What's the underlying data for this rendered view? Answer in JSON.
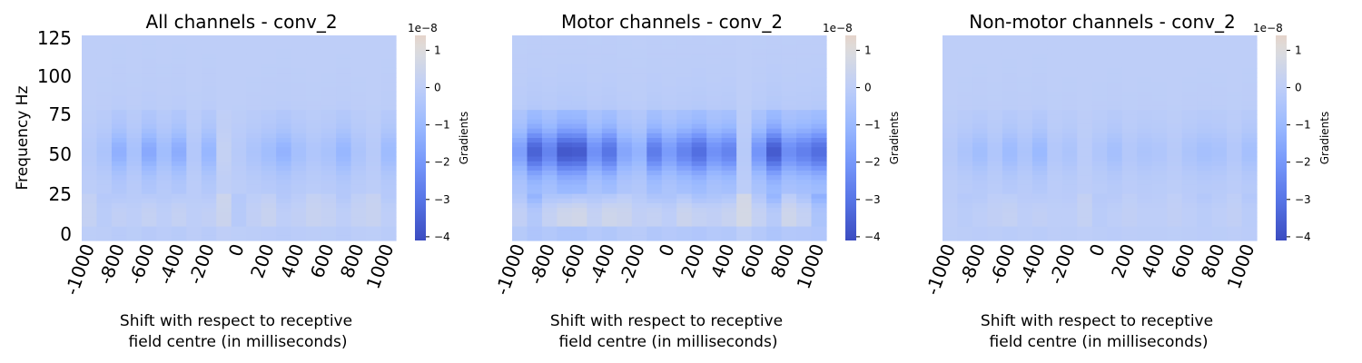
{
  "chart_data": [
    {
      "type": "heatmap",
      "title": "All channels - conv_2",
      "xlabel_line1": "Shift with respect to receptive",
      "xlabel_line2": "field centre (in milliseconds)",
      "ylabel": "Frequency Hz",
      "x_ticks": [
        "-1000",
        "-800",
        "-600",
        "-400",
        "-200",
        "0",
        "200",
        "400",
        "600",
        "800",
        "1000"
      ],
      "y_ticks": [
        "125",
        "100",
        "75",
        "50",
        "25",
        "0"
      ],
      "colorbar": {
        "label": "Gradients",
        "exponent": "1e−8",
        "ticks": [
          "1",
          "0",
          "−1",
          "−2",
          "−3",
          "−4"
        ],
        "vmin": -4.1,
        "vmax": 1.4
      },
      "colormap": "coolwarm",
      "n_columns": 21,
      "column_peaks": [
        -0.2,
        -0.5,
        -1.3,
        -0.6,
        -1.5,
        -0.8,
        -1.4,
        -0.3,
        -1.1,
        0.2,
        -0.2,
        -0.5,
        -0.8,
        -1.2,
        -0.7,
        -0.4,
        -0.6,
        -1.1,
        -0.5,
        -0.2,
        -0.9
      ],
      "low_band": [
        0.2,
        -0.1,
        0.1,
        0.0,
        0.2,
        0.0,
        0.2,
        0.0,
        0.1,
        0.4,
        -0.2,
        0.1,
        0.3,
        0.0,
        0.1,
        0.3,
        0.2,
        0.0,
        0.2,
        0.3,
        0.0
      ]
    },
    {
      "type": "heatmap",
      "title": "Motor channels - conv_2",
      "xlabel_line1": "Shift with respect to receptive",
      "xlabel_line2": "field centre (in milliseconds)",
      "ylabel": "",
      "x_ticks": [
        "-1000",
        "-800",
        "-600",
        "-400",
        "-200",
        "0",
        "200",
        "400",
        "600",
        "800",
        "1000"
      ],
      "y_ticks": [],
      "colorbar": {
        "label": "Gradients",
        "exponent": "1e−8",
        "ticks": [
          "1",
          "0",
          "−1",
          "−2",
          "−3",
          "−4"
        ],
        "vmin": -4.1,
        "vmax": 1.4
      },
      "colormap": "coolwarm",
      "n_columns": 21,
      "column_peaks": [
        -1.8,
        -3.5,
        -2.6,
        -3.8,
        -3.7,
        -2.2,
        -3.0,
        -1.6,
        -1.2,
        -2.8,
        -1.9,
        -2.6,
        -3.2,
        -2.2,
        -2.6,
        -0.2,
        -2.1,
        -3.7,
        -2.3,
        -2.7,
        -3.2
      ],
      "low_band": [
        0.1,
        -0.3,
        0.2,
        0.5,
        0.6,
        0.2,
        0.5,
        0.4,
        0.1,
        0.2,
        0.0,
        0.4,
        0.2,
        0.1,
        0.3,
        0.7,
        0.2,
        -0.2,
        0.5,
        0.2,
        -0.5
      ]
    },
    {
      "type": "heatmap",
      "title": "Non-motor channels - conv_2",
      "xlabel_line1": "Shift with respect to receptive",
      "xlabel_line2": "field centre (in milliseconds)",
      "ylabel": "",
      "x_ticks": [
        "-1000",
        "-800",
        "-600",
        "-400",
        "-200",
        "0",
        "200",
        "400",
        "600",
        "800",
        "1000"
      ],
      "y_ticks": [],
      "colorbar": {
        "label": "Gradients",
        "exponent": "1e−8",
        "ticks": [
          "1",
          "0",
          "−1",
          "−2",
          "−3",
          "−4"
        ],
        "vmin": -4.1,
        "vmax": 1.4
      },
      "colormap": "coolwarm",
      "n_columns": 21,
      "column_peaks": [
        -0.2,
        -0.5,
        -0.8,
        -0.4,
        -0.9,
        -0.5,
        -1.0,
        -0.3,
        -0.5,
        -0.1,
        -0.4,
        -0.7,
        -0.3,
        -0.5,
        -0.4,
        -0.2,
        -0.5,
        -0.7,
        -0.6,
        -0.3,
        -0.7
      ],
      "low_band": [
        0.0,
        -0.1,
        0.0,
        0.1,
        0.2,
        0.0,
        0.1,
        0.0,
        0.0,
        0.2,
        -0.1,
        0.0,
        0.1,
        0.0,
        0.0,
        0.1,
        0.0,
        -0.1,
        0.0,
        0.1,
        -0.1
      ]
    }
  ]
}
